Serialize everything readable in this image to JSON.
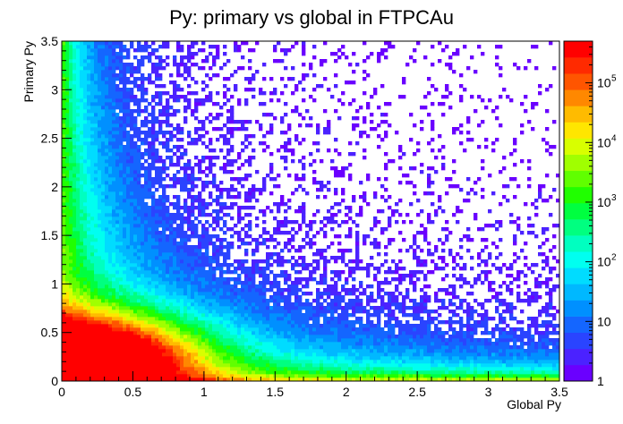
{
  "chart_data": {
    "type": "heatmap",
    "title": "Py: primary vs global in FTPCAu",
    "xlabel": "Global Py",
    "ylabel": "Primary Py",
    "xlim": [
      0,
      3.5
    ],
    "ylim": [
      0,
      3.5
    ],
    "x_ticks": [
      "0",
      "0.5",
      "1",
      "1.5",
      "2",
      "2.5",
      "3",
      "3.5"
    ],
    "y_ticks": [
      "0",
      "0.5",
      "1",
      "1.5",
      "2",
      "2.5",
      "3",
      "3.5"
    ],
    "z_scale": "log",
    "z_range": [
      1,
      500000
    ],
    "z_ticks": [
      {
        "base": "1",
        "exp": ""
      },
      {
        "base": "10",
        "exp": ""
      },
      {
        "base": "10",
        "exp": "2"
      },
      {
        "base": "10",
        "exp": "3"
      },
      {
        "base": "10",
        "exp": "4"
      },
      {
        "base": "10",
        "exp": "5"
      }
    ],
    "palette": [
      "#6a00ff",
      "#4b22ff",
      "#2a44ff",
      "#1466ff",
      "#0090ff",
      "#00b8ff",
      "#00dcff",
      "#00fff0",
      "#00ffc0",
      "#00ff80",
      "#00ff40",
      "#20ff00",
      "#60ff00",
      "#a0ff00",
      "#d8ff00",
      "#ffe600",
      "#ffbb00",
      "#ff8800",
      "#ff5500",
      "#ff2a00",
      "#ff0000"
    ],
    "density_summary": "peak density at Global Py approx. 0.2, Primary Py approx. 0.25; narrow high-count ridge along the diagonal near the origin; counts fall off with increasing Py"
  }
}
